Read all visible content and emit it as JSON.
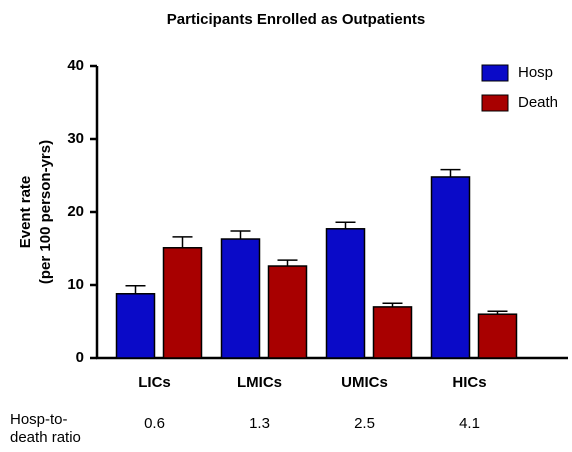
{
  "chart_data": {
    "type": "bar",
    "title": "Participants Enrolled as Outpatients",
    "ylabel": [
      "Event rate",
      "(per 100 person-yrs)"
    ],
    "categories": [
      "LICs",
      "LMICs",
      "UMICs",
      "HICs"
    ],
    "series": [
      {
        "name": "Hosp",
        "color": "#0a0ac8",
        "values": [
          8.8,
          16.3,
          17.7,
          24.8
        ],
        "errors": [
          1.1,
          1.1,
          0.9,
          1.0
        ]
      },
      {
        "name": "Death",
        "color": "#a80000",
        "values": [
          15.1,
          12.6,
          7.0,
          6.0
        ],
        "errors": [
          1.5,
          0.8,
          0.5,
          0.4
        ]
      }
    ],
    "ylim": [
      0,
      40
    ],
    "yticks": [
      0,
      10,
      20,
      30,
      40
    ],
    "legend": "upper right",
    "ratio_label": [
      "Hosp-to-",
      "death ratio"
    ],
    "ratio_values": [
      0.6,
      1.3,
      2.5,
      4.1
    ]
  }
}
